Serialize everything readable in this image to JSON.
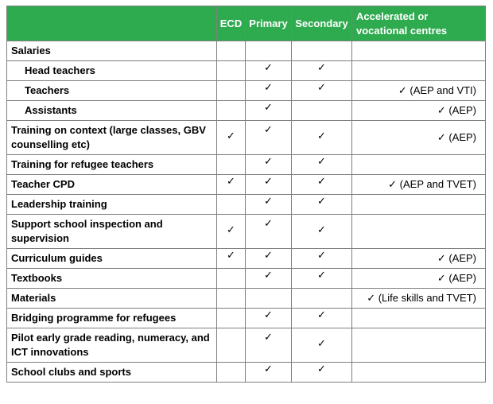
{
  "headers": {
    "activity": "",
    "ecd": "ECD",
    "primary": "Primary",
    "secondary": "Secondary",
    "accelerated": "Accelerated or vocational centres"
  },
  "rows": [
    {
      "label": "Salaries",
      "ecd": "",
      "primary": "",
      "secondary": "",
      "accelerated": ""
    },
    {
      "label": "Head teachers",
      "ecd": "",
      "primary": "✓",
      "secondary": "✓",
      "accelerated": ""
    },
    {
      "label": "Teachers",
      "ecd": "",
      "primary": "✓",
      "secondary": "✓",
      "accelerated": "✓ (AEP and VTI)"
    },
    {
      "label": "Assistants",
      "ecd": "",
      "primary": "✓",
      "secondary": "",
      "accelerated": "✓ (AEP)"
    },
    {
      "label": "Training on context (large classes, GBV counselling etc)",
      "ecd": "✓",
      "primary": "✓",
      "secondary": "✓",
      "accelerated": "✓ (AEP)"
    },
    {
      "label": "Training for refugee teachers",
      "ecd": "",
      "primary": "✓",
      "secondary": "✓",
      "accelerated": ""
    },
    {
      "label": "Teacher CPD",
      "ecd": "✓",
      "primary": "✓",
      "secondary": "✓",
      "accelerated": "✓ (AEP and TVET)"
    },
    {
      "label": "Leadership training",
      "ecd": "",
      "primary": "✓",
      "secondary": "✓",
      "accelerated": ""
    },
    {
      "label": "Support school inspection and supervision",
      "ecd": "✓",
      "primary": "✓",
      "secondary": "✓",
      "accelerated": ""
    },
    {
      "label": "Curriculum guides",
      "ecd": "✓",
      "primary": "✓",
      "secondary": "✓",
      "accelerated": "✓ (AEP)"
    },
    {
      "label": "Textbooks",
      "ecd": "",
      "primary": "✓",
      "secondary": "✓",
      "accelerated": "✓ (AEP)"
    },
    {
      "label": "Materials",
      "ecd": "",
      "primary": "",
      "secondary": "",
      "accelerated": "✓ (Life skills and TVET)"
    },
    {
      "label": "Bridging programme for refugees",
      "ecd": "",
      "primary": "✓",
      "secondary": "✓",
      "accelerated": ""
    },
    {
      "label": "Pilot early grade reading, numeracy, and ICT innovations",
      "ecd": "",
      "primary": "✓",
      "secondary": "✓",
      "accelerated": ""
    },
    {
      "label": "School clubs and sports",
      "ecd": "",
      "primary": "✓",
      "secondary": "✓",
      "accelerated": ""
    }
  ],
  "colors": {
    "header_bg": "#2eaa4f",
    "header_text": "#ffffff",
    "border": "#7f7f7f"
  }
}
